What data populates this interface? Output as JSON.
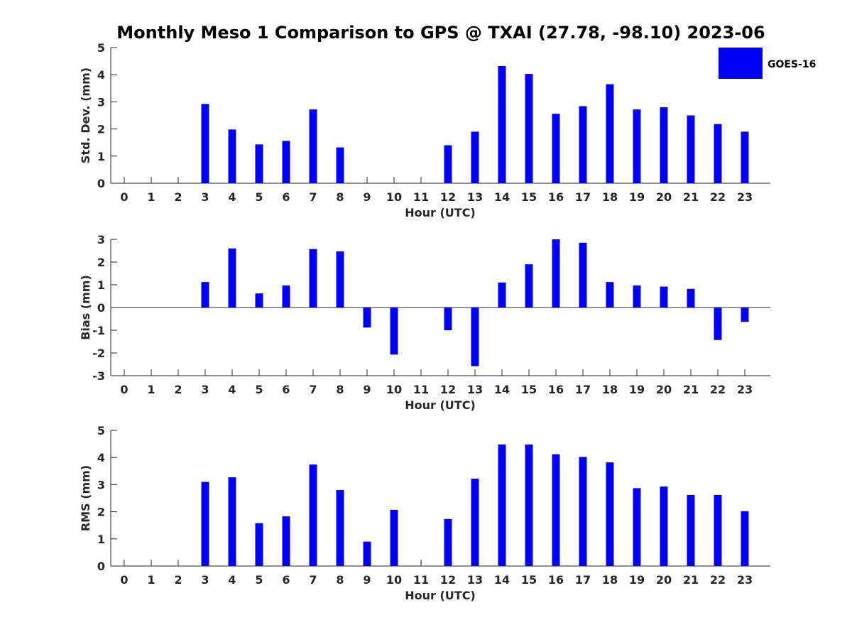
{
  "figure": {
    "title": "Monthly Meso 1 Comparison to GPS @ TXAI (27.78, -98.10) 2023-06",
    "legend": {
      "label": "GOES-16",
      "color": "#0000ff"
    }
  },
  "chart_data": [
    {
      "type": "bar",
      "xlabel": "Hour (UTC)",
      "ylabel": "Std. Dev. (mm)",
      "ylim": [
        0,
        5
      ],
      "yticks": [
        0,
        1,
        2,
        3,
        4,
        5
      ],
      "categories": [
        "0",
        "1",
        "2",
        "3",
        "4",
        "5",
        "6",
        "7",
        "8",
        "9",
        "10",
        "11",
        "12",
        "13",
        "14",
        "15",
        "16",
        "17",
        "18",
        "19",
        "20",
        "21",
        "22",
        "23"
      ],
      "series": [
        {
          "values": [
            null,
            null,
            null,
            2.92,
            1.98,
            1.43,
            1.56,
            2.72,
            1.32,
            null,
            null,
            null,
            1.4,
            1.9,
            4.32,
            4.03,
            2.56,
            2.84,
            3.65,
            2.72,
            2.8,
            2.5,
            2.18,
            1.9
          ]
        }
      ],
      "legend": "top-right"
    },
    {
      "type": "bar",
      "xlabel": "Hour (UTC)",
      "ylabel": "Bias (mm)",
      "ylim": [
        -3,
        3
      ],
      "yticks": [
        -3,
        -2,
        -1,
        0,
        1,
        2,
        3
      ],
      "categories": [
        "0",
        "1",
        "2",
        "3",
        "4",
        "5",
        "6",
        "7",
        "8",
        "9",
        "10",
        "11",
        "12",
        "13",
        "14",
        "15",
        "16",
        "17",
        "18",
        "19",
        "20",
        "21",
        "22",
        "23"
      ],
      "series": [
        {
          "values": [
            null,
            null,
            null,
            1.12,
            2.6,
            0.62,
            0.97,
            2.57,
            2.47,
            -0.88,
            -2.07,
            null,
            -1.0,
            -2.58,
            1.1,
            1.9,
            3.0,
            2.85,
            1.12,
            0.97,
            0.92,
            0.82,
            -1.43,
            -0.63
          ]
        }
      ]
    },
    {
      "type": "bar",
      "xlabel": "Hour (UTC)",
      "ylabel": "RMS (mm)",
      "ylim": [
        0,
        5
      ],
      "yticks": [
        0,
        1,
        2,
        3,
        4,
        5
      ],
      "categories": [
        "0",
        "1",
        "2",
        "3",
        "4",
        "5",
        "6",
        "7",
        "8",
        "9",
        "10",
        "11",
        "12",
        "13",
        "14",
        "15",
        "16",
        "17",
        "18",
        "19",
        "20",
        "21",
        "22",
        "23"
      ],
      "series": [
        {
          "values": [
            null,
            null,
            null,
            3.1,
            3.27,
            1.58,
            1.83,
            3.74,
            2.8,
            0.9,
            2.07,
            null,
            1.73,
            3.22,
            4.48,
            4.48,
            4.12,
            4.02,
            3.82,
            2.87,
            2.93,
            2.62,
            2.62,
            2.02
          ]
        }
      ]
    }
  ]
}
